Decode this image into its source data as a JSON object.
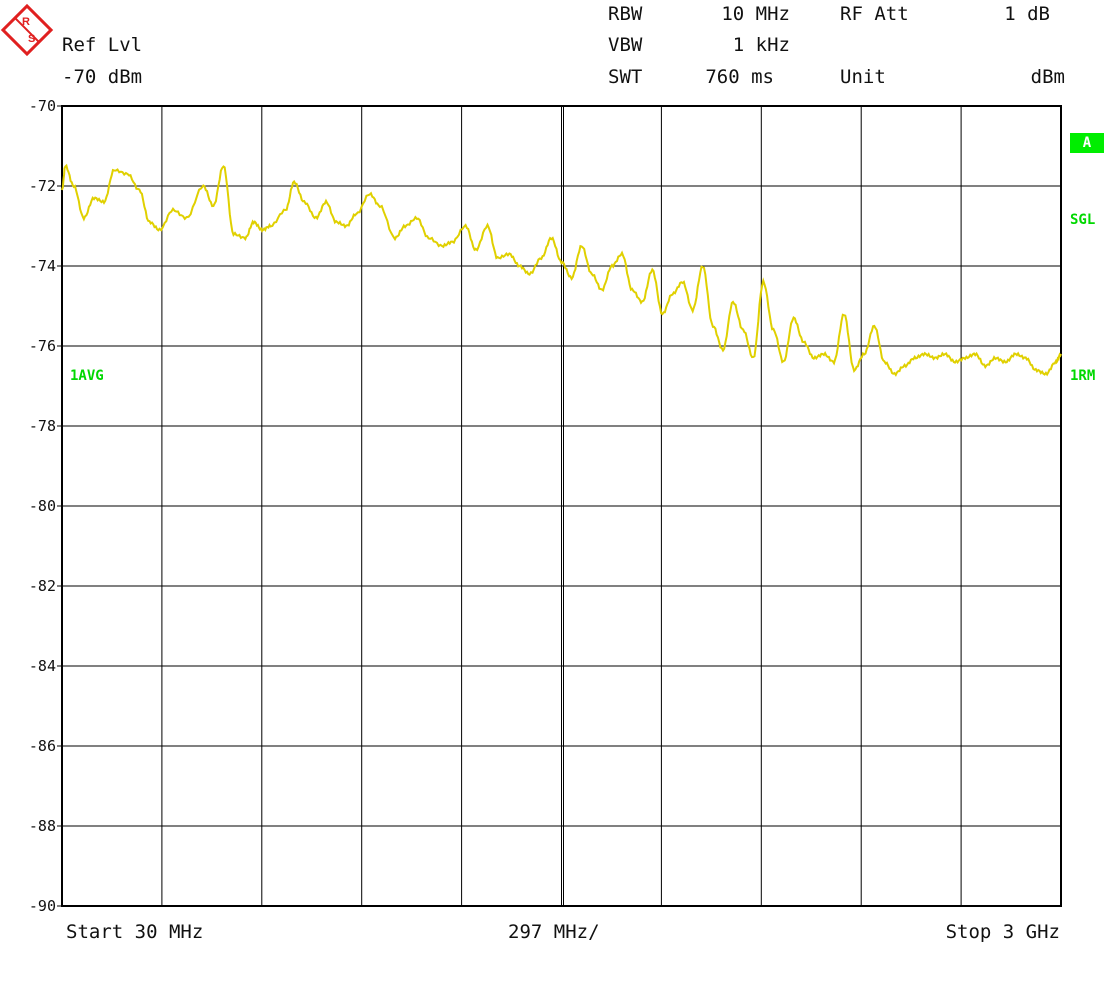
{
  "header": {
    "ref_lvl_label": "Ref Lvl",
    "ref_lvl_value": "-70 dBm",
    "rbw_label": "RBW",
    "rbw_value": "10 MHz",
    "vbw_label": "VBW",
    "vbw_value": "1 kHz",
    "swt_label": "SWT",
    "swt_value": "760 ms",
    "rf_att_label": "RF Att",
    "rf_att_value": "1 dB",
    "unit_label": "Unit",
    "unit_value": "dBm"
  },
  "side_labels": {
    "trace_a_badge": "A",
    "sgl": "SGL",
    "avg": "1AVG",
    "rm": "1RM"
  },
  "footer": {
    "start": "Start 30 MHz",
    "span_per_div": "297 MHz/",
    "stop": "Stop 3 GHz"
  },
  "colors": {
    "trace": "#e0d000",
    "grid": "#000000",
    "label_green": "#00d800",
    "logo_red": "#e02020"
  },
  "chart_data": {
    "type": "line",
    "xlabel": "",
    "ylabel": "",
    "x_unit": "MHz",
    "y_unit": "dBm",
    "xlim": [
      30,
      3000
    ],
    "ylim": [
      -90,
      -70
    ],
    "x_divisions": 10,
    "y_tick_values": [
      -70,
      -72,
      -74,
      -76,
      -78,
      -80,
      -82,
      -84,
      -86,
      -88,
      -90
    ],
    "y_tick_labels": [
      "-70",
      "-72",
      "-74",
      "-76",
      "-78",
      "-80",
      "-82",
      "-84",
      "-86",
      "-88",
      "-90"
    ],
    "grid": true,
    "series": [
      {
        "x": [
          30,
          40,
          65,
          95,
          125,
          155,
          185,
          225,
          260,
          290,
          320,
          360,
          400,
          450,
          480,
          510,
          540,
          575,
          600,
          625,
          650,
          695,
          720,
          750,
          785,
          815,
          845,
          875,
          905,
          945,
          975,
          1020,
          1050,
          1085,
          1120,
          1160,
          1190,
          1230,
          1260,
          1295,
          1325,
          1360,
          1390,
          1420,
          1455,
          1485,
          1515,
          1545,
          1575,
          1605,
          1635,
          1665,
          1695,
          1725,
          1755,
          1785,
          1815,
          1845,
          1875,
          1905,
          1935,
          1965,
          1995,
          2025,
          2055,
          2085,
          2115,
          2145,
          2175,
          2205,
          2235,
          2265,
          2295,
          2325,
          2355,
          2385,
          2415,
          2445,
          2475,
          2505,
          2535,
          2565,
          2595,
          2625,
          2655,
          2685,
          2715,
          2745,
          2775,
          2805,
          2835,
          2865,
          2895,
          2925,
          2955,
          2985,
          3000
        ],
        "y": [
          -72.1,
          -71.5,
          -72.0,
          -72.8,
          -72.3,
          -72.4,
          -71.6,
          -71.7,
          -72.1,
          -72.9,
          -73.1,
          -72.6,
          -72.8,
          -72.0,
          -72.5,
          -71.5,
          -73.2,
          -73.3,
          -72.9,
          -73.1,
          -73.0,
          -72.6,
          -71.9,
          -72.4,
          -72.8,
          -72.4,
          -72.9,
          -73.0,
          -72.7,
          -72.2,
          -72.5,
          -73.3,
          -73.0,
          -72.8,
          -73.3,
          -73.5,
          -73.4,
          -73.0,
          -73.6,
          -73.0,
          -73.8,
          -73.7,
          -74.0,
          -74.2,
          -73.8,
          -73.3,
          -73.9,
          -74.3,
          -73.5,
          -74.2,
          -74.6,
          -74.0,
          -73.7,
          -74.6,
          -74.9,
          -74.1,
          -75.2,
          -74.7,
          -74.4,
          -75.1,
          -74.0,
          -75.5,
          -76.1,
          -74.9,
          -75.6,
          -76.3,
          -74.4,
          -75.6,
          -76.4,
          -75.3,
          -75.9,
          -76.3,
          -76.2,
          -76.4,
          -75.2,
          -76.6,
          -76.2,
          -75.5,
          -76.4,
          -76.7,
          -76.5,
          -76.3,
          -76.2,
          -76.3,
          -76.2,
          -76.4,
          -76.3,
          -76.2,
          -76.5,
          -76.3,
          -76.4,
          -76.2,
          -76.3,
          -76.6,
          -76.7,
          -76.4,
          -76.2
        ],
        "color": "#e0d000"
      }
    ]
  }
}
